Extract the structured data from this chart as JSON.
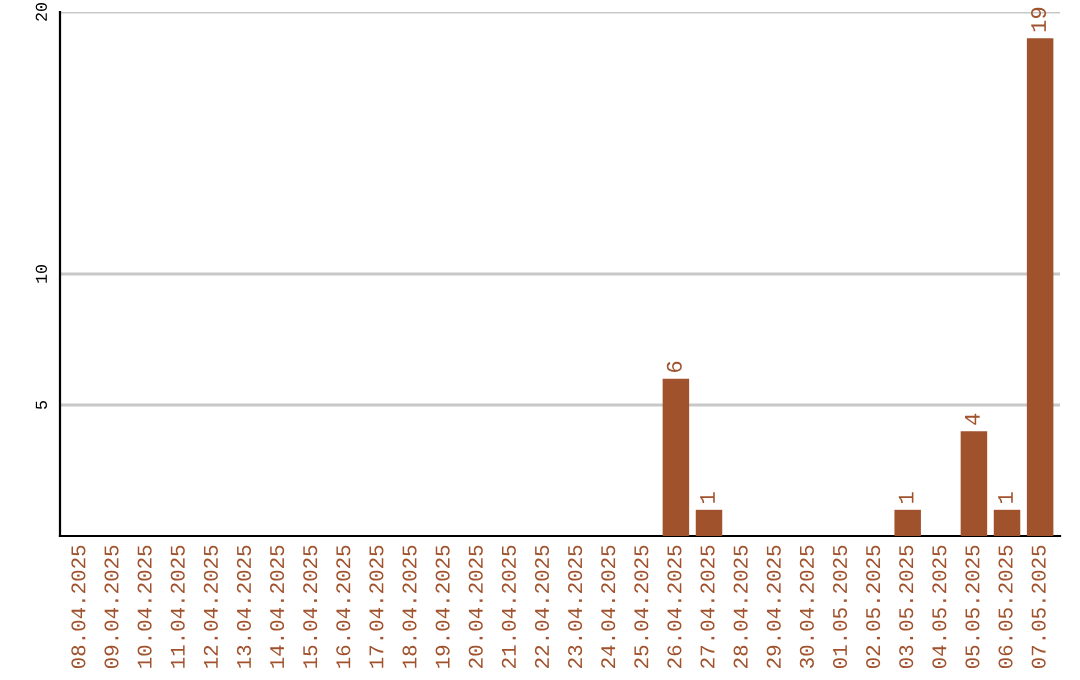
{
  "chart_data": {
    "type": "bar",
    "categories": [
      "08.04.2025",
      "09.04.2025",
      "10.04.2025",
      "11.04.2025",
      "12.04.2025",
      "13.04.2025",
      "14.04.2025",
      "15.04.2025",
      "16.04.2025",
      "17.04.2025",
      "18.04.2025",
      "19.04.2025",
      "20.04.2025",
      "21.04.2025",
      "22.04.2025",
      "23.04.2025",
      "24.04.2025",
      "25.04.2025",
      "26.04.2025",
      "27.04.2025",
      "28.04.2025",
      "29.04.2025",
      "30.04.2025",
      "01.05.2025",
      "02.05.2025",
      "03.05.2025",
      "04.05.2025",
      "05.05.2025",
      "06.05.2025",
      "07.05.2025"
    ],
    "values": [
      0,
      0,
      0,
      0,
      0,
      0,
      0,
      0,
      0,
      0,
      0,
      0,
      0,
      0,
      0,
      0,
      0,
      0,
      6,
      1,
      0,
      0,
      0,
      0,
      0,
      1,
      0,
      4,
      1,
      19
    ],
    "value_labels": [
      null,
      null,
      null,
      null,
      null,
      null,
      null,
      null,
      null,
      null,
      null,
      null,
      null,
      null,
      null,
      null,
      null,
      null,
      "6",
      "1",
      null,
      null,
      null,
      null,
      null,
      "1",
      null,
      "4",
      "1",
      "19"
    ],
    "color": "#a0522d",
    "ylim": [
      0,
      20
    ],
    "yticks": [
      5,
      10,
      20
    ],
    "grid": "y"
  }
}
